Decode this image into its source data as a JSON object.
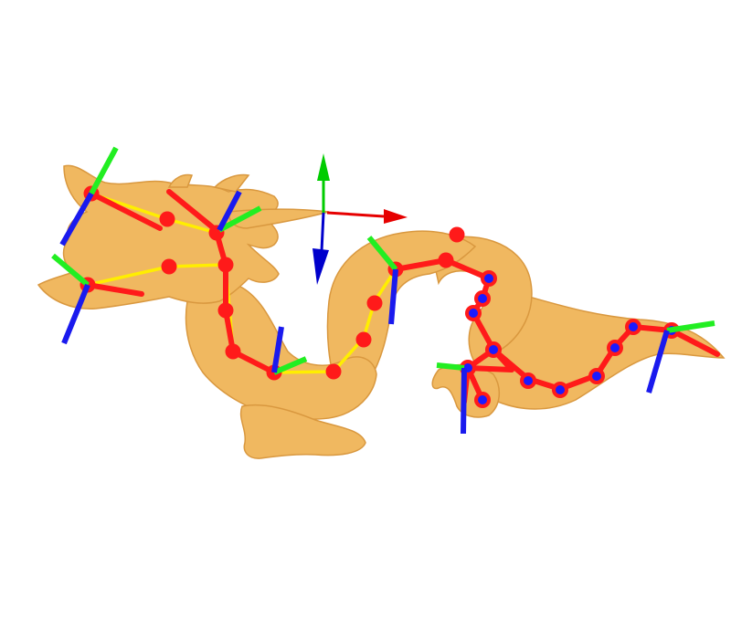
{
  "scene": {
    "background": "#ffffff",
    "model": "dragon-mesh",
    "mesh_color": "#f0b860",
    "mesh_shadow": "#d9983f",
    "skeleton_color": "#ff1a1a",
    "path_color": "#ffee00",
    "joint_inner_color": "#1a1aff",
    "axis_colors": {
      "x": "#e60000",
      "y": "#00cc00",
      "z": "#0000cc"
    },
    "frame_colors": {
      "x": "#ff1a1a",
      "y": "#22ee22",
      "z": "#1a1aee"
    }
  }
}
